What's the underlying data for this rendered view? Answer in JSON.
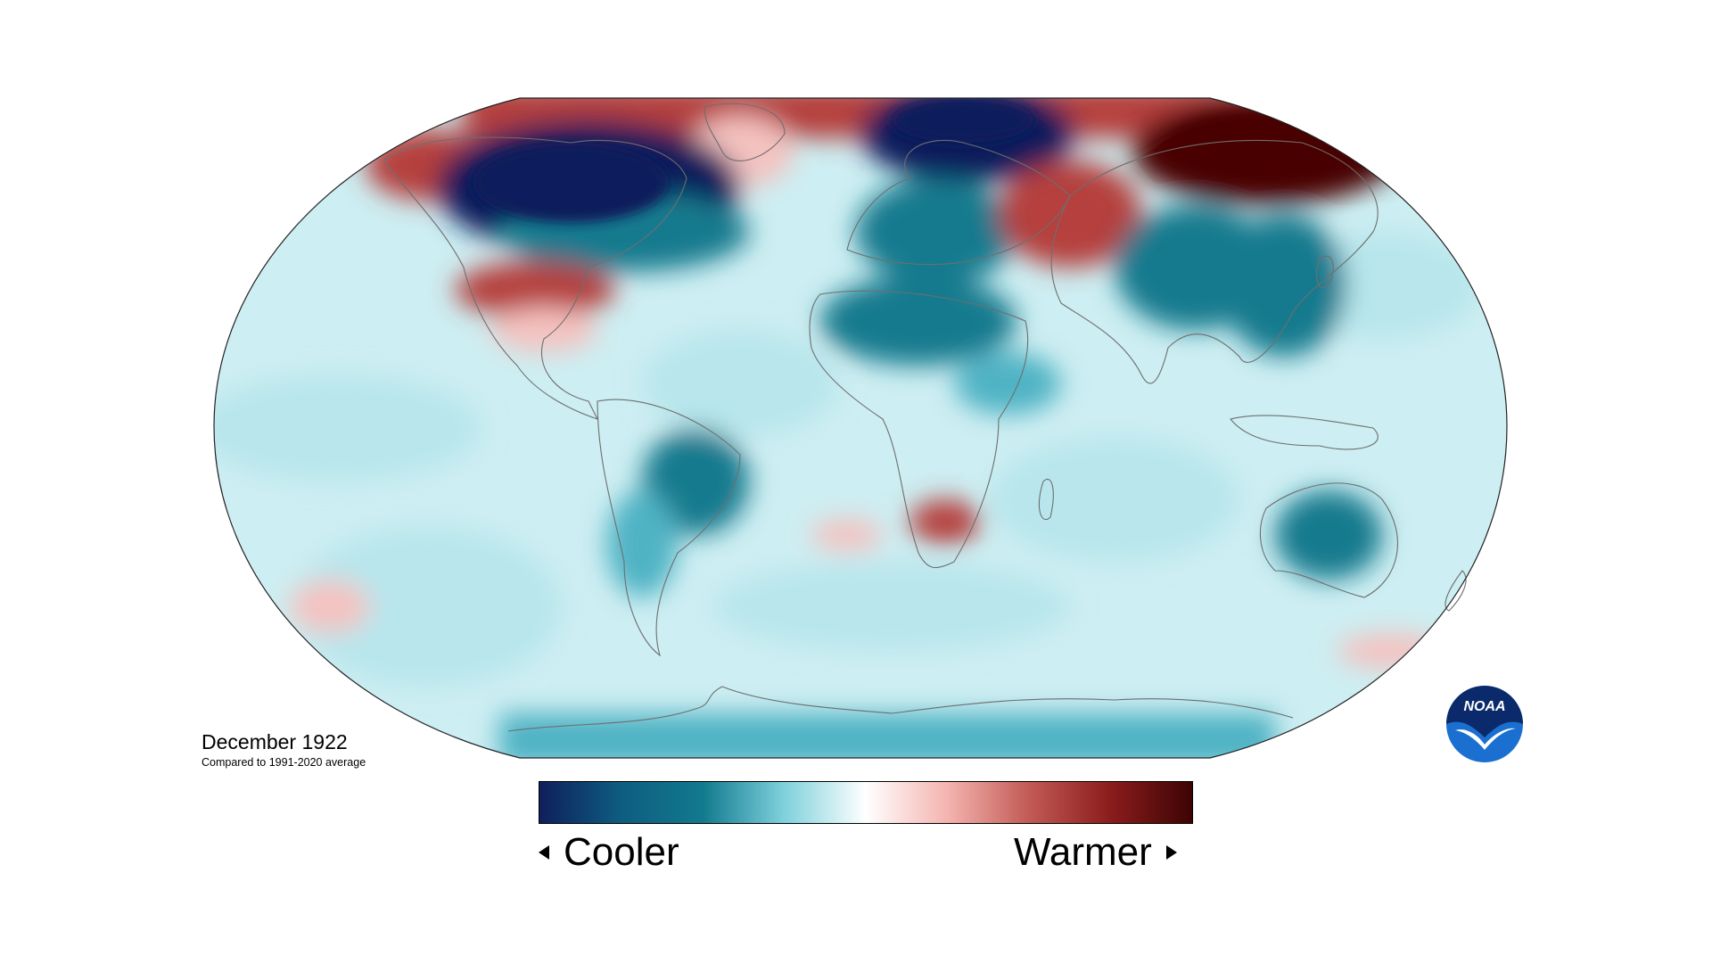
{
  "map": {
    "title": "December 1922",
    "subtitle": "Compared to 1991-2020 average",
    "projection": "robinson",
    "colors": {
      "dark_cool": "#0f1f5c",
      "cool": "#127a8e",
      "light_cool": "#b8e6ec",
      "neutral": "#ffffff",
      "light_warm": "#f4c2c0",
      "warm": "#b5403d",
      "dark_warm": "#4a0606",
      "ocean_base": "#cdeef2",
      "land_outline": "#6e6e6e"
    },
    "anomalies": [
      {
        "region": "Canada",
        "level": "strong-cool"
      },
      {
        "region": "Scandinavia",
        "level": "strong-cool"
      },
      {
        "region": "Siberia",
        "level": "strong-warm"
      },
      {
        "region": "Arctic Ocean",
        "level": "warm"
      },
      {
        "region": "United States",
        "level": "warm"
      },
      {
        "region": "Eastern Europe",
        "level": "warm"
      },
      {
        "region": "North Africa",
        "level": "cool"
      },
      {
        "region": "Central Asia",
        "level": "cool"
      },
      {
        "region": "Brazil",
        "level": "cool"
      },
      {
        "region": "Australia",
        "level": "cool"
      },
      {
        "region": "Southern Africa",
        "level": "warm"
      },
      {
        "region": "Antarctica",
        "level": "cool"
      }
    ]
  },
  "legend": {
    "cool_label": "Cooler",
    "warm_label": "Warmer",
    "stops": [
      "#0f1f5c",
      "#0e5d80",
      "#127a8e",
      "#7fd1dc",
      "#ffffff",
      "#f4b4b0",
      "#c25a55",
      "#8b1c1c",
      "#3d0404"
    ]
  },
  "logo": {
    "text": "NOAA",
    "icon": "noaa-logo-icon"
  }
}
